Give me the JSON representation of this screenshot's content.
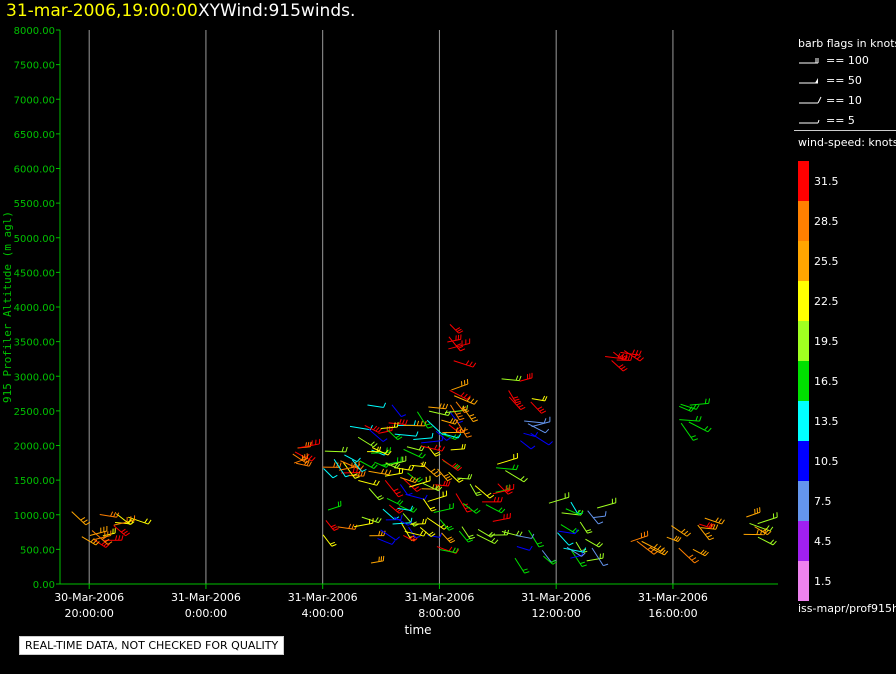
{
  "header": {
    "datetime": "31-mar-2006,19:00:00",
    "product": "XYWind:915winds."
  },
  "legend": {
    "flags_title": "barb flags in knots",
    "flags": [
      {
        "label": "== 100"
      },
      {
        "label": "== 50"
      },
      {
        "label": "== 10"
      },
      {
        "label": "== 5"
      }
    ],
    "speed_title": "wind-speed: knots",
    "speed_scale": [
      {
        "label": "31.5",
        "color": "#ff0000"
      },
      {
        "label": "28.5",
        "color": "#ff8000"
      },
      {
        "label": "25.5",
        "color": "#ffa500"
      },
      {
        "label": "22.5",
        "color": "#ffff00"
      },
      {
        "label": "19.5",
        "color": "#a0ff20"
      },
      {
        "label": "16.5",
        "color": "#00e000"
      },
      {
        "label": "13.5",
        "color": "#00ffff"
      },
      {
        "label": "10.5",
        "color": "#0000ff"
      },
      {
        "label": "7.5",
        "color": "#6495ed"
      },
      {
        "label": "4.5",
        "color": "#a020f0"
      },
      {
        "label": "1.5",
        "color": "#ee82ee"
      }
    ],
    "source": "iss-mapr/prof915h"
  },
  "footer": {
    "note": "REAL-TIME DATA, NOT CHECKED FOR QUALITY"
  },
  "chart_data": {
    "type": "scatter",
    "xlabel": "time",
    "ylabel": "915 Profiler Altitude (m agl)",
    "ylim": [
      0,
      8000
    ],
    "xlim_hours": [
      -1,
      23.6
    ],
    "grid": "vertical",
    "y_ticks": [
      "0.00",
      "500.00",
      "1000.00",
      "1500.00",
      "2000.00",
      "2500.00",
      "3000.00",
      "3500.00",
      "4000.00",
      "4500.00",
      "5000.00",
      "5500.00",
      "6000.00",
      "6500.00",
      "7000.00",
      "7500.00",
      "8000.00"
    ],
    "x_ticks": [
      {
        "hour": 0,
        "date": "30-Mar-2006",
        "time": "20:00:00"
      },
      {
        "hour": 4,
        "date": "31-Mar-2006",
        "time": "0:00:00"
      },
      {
        "hour": 8,
        "date": "31-Mar-2006",
        "time": "4:00:00"
      },
      {
        "hour": 12,
        "date": "31-Mar-2006",
        "time": "8:00:00"
      },
      {
        "hour": 16,
        "date": "31-Mar-2006",
        "time": "12:00:00"
      },
      {
        "hour": 20,
        "date": "31-Mar-2006",
        "time": "16:00:00"
      }
    ],
    "barb_clusters": [
      {
        "t0": -0.6,
        "t1": 1.5,
        "z0": 400,
        "z1": 1100,
        "speeds": [
          22.5,
          25.5,
          28.5,
          31.5
        ]
      },
      {
        "t0": 6.9,
        "t1": 7.2,
        "z0": 1700,
        "z1": 2000,
        "speeds": [
          28.5,
          31.5
        ]
      },
      {
        "t0": 8.0,
        "t1": 11.0,
        "z0": 700,
        "z1": 2300,
        "speeds": [
          31.5,
          28.5,
          22.5,
          19.5,
          16.5,
          13.5
        ]
      },
      {
        "t0": 9.5,
        "t1": 12.5,
        "z0": 300,
        "z1": 2600,
        "speeds": [
          10.5,
          13.5,
          16.5,
          19.5,
          22.5,
          25.5,
          31.5
        ]
      },
      {
        "t0": 11.9,
        "t1": 12.5,
        "z0": 2700,
        "z1": 3800,
        "speeds": [
          31.5,
          28.5
        ]
      },
      {
        "t0": 12.3,
        "t1": 12.9,
        "z0": 2300,
        "z1": 2900,
        "speeds": [
          25.5,
          28.5
        ]
      },
      {
        "t0": 12.5,
        "t1": 14.5,
        "z0": 700,
        "z1": 1800,
        "speeds": [
          22.5,
          19.5,
          16.5,
          31.5
        ]
      },
      {
        "t0": 14.0,
        "t1": 15.2,
        "z0": 2600,
        "z1": 3100,
        "speeds": [
          31.5,
          22.5,
          19.5
        ]
      },
      {
        "t0": 14.7,
        "t1": 15.2,
        "z0": 1800,
        "z1": 2500,
        "speeds": [
          10.5,
          7.5
        ]
      },
      {
        "t0": 14.5,
        "t1": 17.5,
        "z0": 300,
        "z1": 1200,
        "speeds": [
          16.5,
          13.5,
          10.5,
          7.5,
          19.5
        ]
      },
      {
        "t0": 17.6,
        "t1": 18.4,
        "z0": 3200,
        "z1": 3400,
        "speeds": [
          31.5
        ]
      },
      {
        "t0": 18.5,
        "t1": 21.2,
        "z0": 500,
        "z1": 1000,
        "speeds": [
          31.5,
          28.5,
          25.5
        ]
      },
      {
        "t0": 20.2,
        "t1": 20.6,
        "z0": 2300,
        "z1": 2700,
        "speeds": [
          16.5
        ]
      },
      {
        "t0": 22.4,
        "t1": 23.0,
        "z0": 600,
        "z1": 1100,
        "speeds": [
          22.5,
          25.5,
          19.5
        ]
      }
    ]
  }
}
